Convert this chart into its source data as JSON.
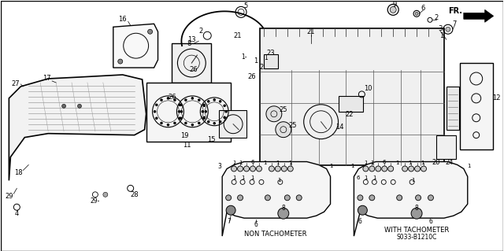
{
  "bg_color": "#ffffff",
  "line_color": "#333333",
  "text_color": "#000000",
  "label_bottom_left": "NON TACHOMETER",
  "label_bottom_right": "WITH TACHOMETER",
  "part_number": "S033-B1210C",
  "fr_label": "FR.",
  "fig_width": 6.4,
  "fig_height": 3.19,
  "dpi": 100
}
